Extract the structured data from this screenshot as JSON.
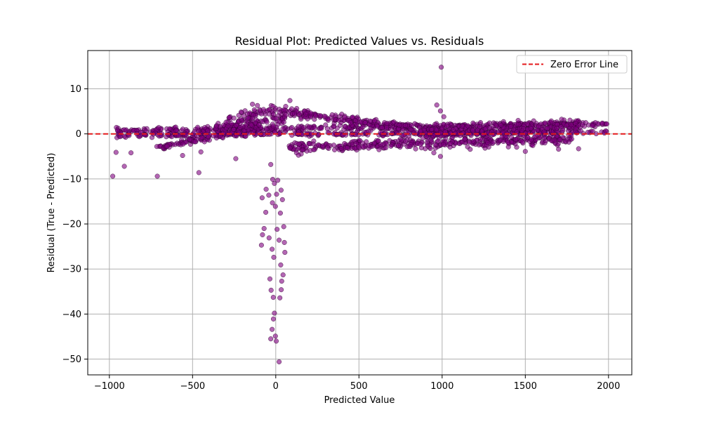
{
  "chart_data": {
    "type": "scatter",
    "title": "Residual Plot: Predicted Values vs. Residuals",
    "xlabel": "Predicted Value",
    "ylabel": "Residual (True - Predicted)",
    "xlim": [
      -1130,
      2140
    ],
    "ylim": [
      -53.5,
      18.5
    ],
    "xticks": [
      -1000,
      -500,
      0,
      500,
      1000,
      1500,
      2000
    ],
    "xtick_labels": [
      "−1000",
      "−500",
      "0",
      "500",
      "1000",
      "1500",
      "2000"
    ],
    "yticks": [
      -50,
      -40,
      -30,
      -20,
      -10,
      0,
      10
    ],
    "ytick_labels": [
      "−50",
      "−40",
      "−30",
      "−20",
      "−10",
      "0",
      "10"
    ],
    "grid": true,
    "legend": {
      "position": "top-right",
      "entries": [
        "Zero Error Line"
      ]
    },
    "reference_line": {
      "name": "Zero Error Line",
      "y": 0,
      "style": "dashed",
      "color": "#e41a1c"
    },
    "point_color": "#800080",
    "point_edge_color": "#2a002a",
    "bands": [
      {
        "x_start": -960,
        "x_end": 1990,
        "y_start": 0.6,
        "y_end": 2.3,
        "spread": 0.5,
        "n": 420
      },
      {
        "x_start": -960,
        "x_end": 1990,
        "y_start": -0.4,
        "y_end": 0.4,
        "spread": 0.4,
        "n": 300
      },
      {
        "x_start": -720,
        "x_end": -100,
        "y_start": -3.0,
        "y_end": 1.2,
        "spread": 0.6,
        "n": 130
      },
      {
        "x_start": -500,
        "x_end": 60,
        "y_start": 0.5,
        "y_end": 3.5,
        "spread": 0.9,
        "n": 110
      },
      {
        "x_start": 20,
        "x_end": 1000,
        "y_start": 5.0,
        "y_end": 0.2,
        "spread": 0.9,
        "n": 220
      },
      {
        "x_start": 80,
        "x_end": 1780,
        "y_start": -3.0,
        "y_end": -1.2,
        "spread": 0.9,
        "n": 380
      },
      {
        "x_start": 900,
        "x_end": 1820,
        "y_start": 0.3,
        "y_end": 1.5,
        "spread": 1.2,
        "n": 300
      },
      {
        "x_start": -300,
        "x_end": 0,
        "y_start": 3.0,
        "y_end": 5.5,
        "spread": 1.0,
        "n": 50
      }
    ],
    "points": [
      {
        "x": 995,
        "y": 14.8
      },
      {
        "x": -980,
        "y": -9.4
      },
      {
        "x": -910,
        "y": -7.2
      },
      {
        "x": -712,
        "y": -9.4
      },
      {
        "x": -462,
        "y": -8.6
      },
      {
        "x": -960,
        "y": -4.1
      },
      {
        "x": -870,
        "y": -4.2
      },
      {
        "x": -560,
        "y": -4.8
      },
      {
        "x": -450,
        "y": -4.0
      },
      {
        "x": -240,
        "y": -5.5
      },
      {
        "x": -30,
        "y": -6.8
      },
      {
        "x": -82,
        "y": -14.2
      },
      {
        "x": -58,
        "y": -12.3
      },
      {
        "x": -42,
        "y": -13.6
      },
      {
        "x": -18,
        "y": -10.1
      },
      {
        "x": -8,
        "y": -11.0
      },
      {
        "x": 5,
        "y": -13.4
      },
      {
        "x": 12,
        "y": -10.3
      },
      {
        "x": 32,
        "y": -12.5
      },
      {
        "x": 40,
        "y": -14.6
      },
      {
        "x": -2,
        "y": -16.1
      },
      {
        "x": 28,
        "y": -17.6
      },
      {
        "x": -60,
        "y": -17.4
      },
      {
        "x": -20,
        "y": -15.3
      },
      {
        "x": -70,
        "y": -21.0
      },
      {
        "x": -40,
        "y": -23.1
      },
      {
        "x": -22,
        "y": -25.6
      },
      {
        "x": 8,
        "y": -21.2
      },
      {
        "x": 20,
        "y": -23.6
      },
      {
        "x": 48,
        "y": -20.6
      },
      {
        "x": 52,
        "y": -24.1
      },
      {
        "x": 55,
        "y": -26.3
      },
      {
        "x": -80,
        "y": -22.4
      },
      {
        "x": -86,
        "y": -24.7
      },
      {
        "x": -12,
        "y": -27.4
      },
      {
        "x": 30,
        "y": -29.1
      },
      {
        "x": 44,
        "y": -31.3
      },
      {
        "x": -35,
        "y": -32.2
      },
      {
        "x": -28,
        "y": -34.7
      },
      {
        "x": 36,
        "y": -32.7
      },
      {
        "x": 33,
        "y": -34.6
      },
      {
        "x": 25,
        "y": -36.4
      },
      {
        "x": -15,
        "y": -36.3
      },
      {
        "x": -8,
        "y": -39.8
      },
      {
        "x": -14,
        "y": -41.1
      },
      {
        "x": -22,
        "y": -43.4
      },
      {
        "x": -30,
        "y": -45.5
      },
      {
        "x": -2,
        "y": -44.9
      },
      {
        "x": 3,
        "y": -46.0
      },
      {
        "x": 20,
        "y": -50.6
      },
      {
        "x": 968,
        "y": 6.4
      },
      {
        "x": 990,
        "y": 5.1
      },
      {
        "x": 1010,
        "y": 3.8
      },
      {
        "x": 950,
        "y": -4.2
      },
      {
        "x": 990,
        "y": -5.0
      },
      {
        "x": 1500,
        "y": -3.9
      },
      {
        "x": 1700,
        "y": -3.4
      },
      {
        "x": 1820,
        "y": -3.3
      },
      {
        "x": 1990,
        "y": 2.2
      },
      {
        "x": -140,
        "y": 6.6
      },
      {
        "x": -110,
        "y": 6.3
      },
      {
        "x": 85,
        "y": 7.4
      },
      {
        "x": 60,
        "y": 6.1
      }
    ]
  }
}
